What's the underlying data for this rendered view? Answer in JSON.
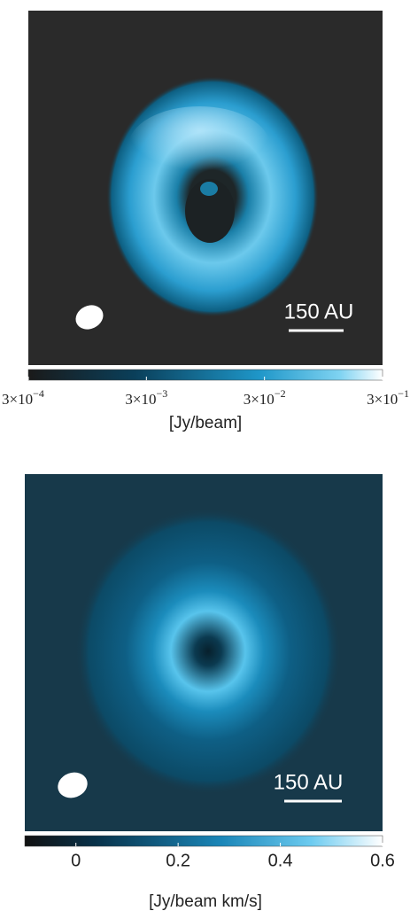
{
  "panels": [
    {
      "scale_bar": "150 AU",
      "colorbar": {
        "log": true,
        "clim": [
          0.0003,
          0.3
        ],
        "ticks": [
          {
            "value": 0.0003,
            "label": "3×10",
            "exponent": "−4"
          },
          {
            "value": 0.003,
            "label": "3×10",
            "exponent": "−3"
          },
          {
            "value": 0.03,
            "label": "3×10",
            "exponent": "−2"
          },
          {
            "value": 0.3,
            "label": "3×10",
            "exponent": "−1"
          }
        ],
        "label": "[Jy/beam]"
      }
    },
    {
      "scale_bar": "150 AU",
      "colorbar": {
        "log": false,
        "clim": [
          -0.1,
          0.6
        ],
        "ticks": [
          0,
          0.2,
          0.4,
          0.6
        ],
        "label": "[Jy/beam km/s]"
      }
    }
  ]
}
